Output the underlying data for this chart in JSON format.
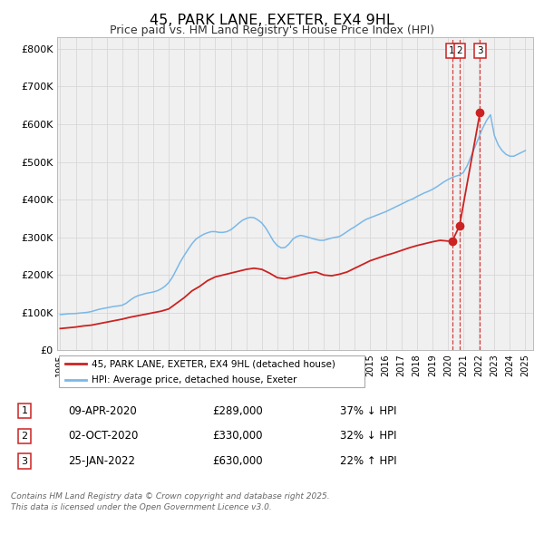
{
  "title": "45, PARK LANE, EXETER, EX4 9HL",
  "subtitle": "Price paid vs. HM Land Registry's House Price Index (HPI)",
  "title_fontsize": 11.5,
  "subtitle_fontsize": 9,
  "ylabel_ticks": [
    "£0",
    "£100K",
    "£200K",
    "£300K",
    "£400K",
    "£500K",
    "£600K",
    "£700K",
    "£800K"
  ],
  "ytick_values": [
    0,
    100000,
    200000,
    300000,
    400000,
    500000,
    600000,
    700000,
    800000
  ],
  "ylim": [
    0,
    830000
  ],
  "xlim_start": 1994.8,
  "xlim_end": 2025.5,
  "xtick_years": [
    1995,
    1996,
    1997,
    1998,
    1999,
    2000,
    2001,
    2002,
    2003,
    2004,
    2005,
    2006,
    2007,
    2008,
    2009,
    2010,
    2011,
    2012,
    2013,
    2014,
    2015,
    2016,
    2017,
    2018,
    2019,
    2020,
    2021,
    2022,
    2023,
    2024,
    2025
  ],
  "bg_color": "#f0f0f0",
  "grid_color": "#d8d8d8",
  "hpi_color": "#7ab8e8",
  "price_color": "#cc2222",
  "sale_dot_color": "#cc2222",
  "vline_color": "#cc2222",
  "legend_label_price": "45, PARK LANE, EXETER, EX4 9HL (detached house)",
  "legend_label_hpi": "HPI: Average price, detached house, Exeter",
  "transactions": [
    {
      "num": 1,
      "date": "09-APR-2020",
      "price": 289000,
      "pct": "37%",
      "dir": "↓",
      "x": 2020.27
    },
    {
      "num": 2,
      "date": "02-OCT-2020",
      "price": 330000,
      "pct": "32%",
      "dir": "↓",
      "x": 2020.75
    },
    {
      "num": 3,
      "date": "25-JAN-2022",
      "price": 630000,
      "pct": "22%",
      "dir": "↑",
      "x": 2022.07
    }
  ],
  "footer_line1": "Contains HM Land Registry data © Crown copyright and database right 2025.",
  "footer_line2": "This data is licensed under the Open Government Licence v3.0.",
  "hpi_data": {
    "x": [
      1995.0,
      1995.25,
      1995.5,
      1995.75,
      1996.0,
      1996.25,
      1996.5,
      1996.75,
      1997.0,
      1997.25,
      1997.5,
      1997.75,
      1998.0,
      1998.25,
      1998.5,
      1998.75,
      1999.0,
      1999.25,
      1999.5,
      1999.75,
      2000.0,
      2000.25,
      2000.5,
      2000.75,
      2001.0,
      2001.25,
      2001.5,
      2001.75,
      2002.0,
      2002.25,
      2002.5,
      2002.75,
      2003.0,
      2003.25,
      2003.5,
      2003.75,
      2004.0,
      2004.25,
      2004.5,
      2004.75,
      2005.0,
      2005.25,
      2005.5,
      2005.75,
      2006.0,
      2006.25,
      2006.5,
      2006.75,
      2007.0,
      2007.25,
      2007.5,
      2007.75,
      2008.0,
      2008.25,
      2008.5,
      2008.75,
      2009.0,
      2009.25,
      2009.5,
      2009.75,
      2010.0,
      2010.25,
      2010.5,
      2010.75,
      2011.0,
      2011.25,
      2011.5,
      2011.75,
      2012.0,
      2012.25,
      2012.5,
      2012.75,
      2013.0,
      2013.25,
      2013.5,
      2013.75,
      2014.0,
      2014.25,
      2014.5,
      2014.75,
      2015.0,
      2015.25,
      2015.5,
      2015.75,
      2016.0,
      2016.25,
      2016.5,
      2016.75,
      2017.0,
      2017.25,
      2017.5,
      2017.75,
      2018.0,
      2018.25,
      2018.5,
      2018.75,
      2019.0,
      2019.25,
      2019.5,
      2019.75,
      2020.0,
      2020.25,
      2020.5,
      2020.75,
      2021.0,
      2021.25,
      2021.5,
      2021.75,
      2022.0,
      2022.25,
      2022.5,
      2022.75,
      2023.0,
      2023.25,
      2023.5,
      2023.75,
      2024.0,
      2024.25,
      2024.5,
      2024.75,
      2025.0
    ],
    "y": [
      95000,
      96000,
      97000,
      97500,
      98000,
      99000,
      100000,
      101000,
      103000,
      106000,
      109000,
      111000,
      113000,
      115000,
      117000,
      118000,
      120000,
      125000,
      133000,
      140000,
      145000,
      148000,
      151000,
      153000,
      155000,
      158000,
      163000,
      170000,
      180000,
      195000,
      215000,
      235000,
      252000,
      268000,
      283000,
      295000,
      302000,
      308000,
      312000,
      315000,
      315000,
      313000,
      313000,
      315000,
      320000,
      328000,
      337000,
      345000,
      350000,
      353000,
      352000,
      346000,
      338000,
      325000,
      308000,
      290000,
      278000,
      272000,
      273000,
      282000,
      295000,
      302000,
      305000,
      303000,
      300000,
      297000,
      294000,
      292000,
      292000,
      295000,
      298000,
      300000,
      302000,
      308000,
      315000,
      322000,
      328000,
      335000,
      342000,
      348000,
      352000,
      356000,
      360000,
      364000,
      368000,
      373000,
      378000,
      383000,
      388000,
      393000,
      398000,
      402000,
      408000,
      413000,
      418000,
      422000,
      427000,
      433000,
      440000,
      447000,
      453000,
      458000,
      462000,
      465000,
      472000,
      490000,
      515000,
      540000,
      565000,
      590000,
      610000,
      625000,
      570000,
      545000,
      530000,
      520000,
      515000,
      515000,
      520000,
      525000,
      530000
    ]
  },
  "price_data": {
    "x": [
      1995.0,
      1995.5,
      1996.0,
      1996.5,
      1997.0,
      1997.5,
      1998.0,
      1998.5,
      1999.0,
      1999.5,
      2000.0,
      2000.5,
      2001.0,
      2001.5,
      2002.0,
      2002.5,
      2003.0,
      2003.5,
      2004.0,
      2004.5,
      2005.0,
      2005.5,
      2006.0,
      2006.5,
      2007.0,
      2007.5,
      2008.0,
      2008.5,
      2009.0,
      2009.5,
      2010.0,
      2010.5,
      2011.0,
      2011.5,
      2012.0,
      2012.5,
      2013.0,
      2013.5,
      2014.0,
      2014.5,
      2015.0,
      2015.5,
      2016.0,
      2016.5,
      2017.0,
      2017.5,
      2018.0,
      2018.5,
      2019.0,
      2019.5,
      2020.27,
      2020.75,
      2022.07
    ],
    "y": [
      58000,
      60000,
      62000,
      65000,
      67000,
      71000,
      75000,
      79000,
      83000,
      88000,
      92000,
      96000,
      100000,
      104000,
      110000,
      125000,
      140000,
      158000,
      170000,
      185000,
      195000,
      200000,
      205000,
      210000,
      215000,
      218000,
      215000,
      205000,
      193000,
      190000,
      195000,
      200000,
      205000,
      208000,
      200000,
      198000,
      202000,
      208000,
      218000,
      228000,
      238000,
      245000,
      252000,
      258000,
      265000,
      272000,
      278000,
      283000,
      288000,
      292000,
      289000,
      330000,
      630000
    ]
  }
}
